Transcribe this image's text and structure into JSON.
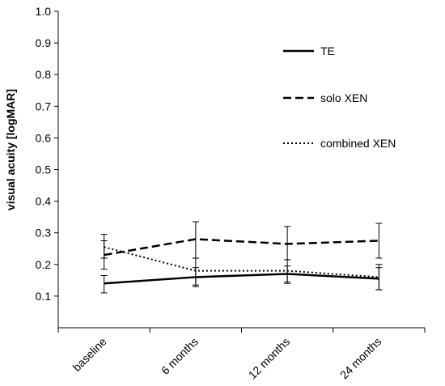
{
  "chart_data": {
    "type": "line",
    "ylabel": "visual acuity [logMAR]",
    "xlabel": "",
    "categories": [
      "baseline",
      "6 months",
      "12 months",
      "24 months"
    ],
    "ylim": [
      0.0,
      1.0
    ],
    "yticks": [
      "0.1",
      "0.2",
      "0.3",
      "0.4",
      "0.5",
      "0.6",
      "0.7",
      "0.8",
      "0.9",
      "1.0"
    ],
    "grid": false,
    "legend_position": "top-right",
    "series": [
      {
        "name": "TE",
        "style": "solid",
        "color": "#000000",
        "values": [
          0.14,
          0.16,
          0.17,
          0.155
        ],
        "err_low": [
          0.11,
          0.13,
          0.14,
          0.12
        ],
        "err_high": [
          0.165,
          0.19,
          0.195,
          0.19
        ]
      },
      {
        "name": "solo XEN",
        "style": "dashed",
        "color": "#000000",
        "values": [
          0.23,
          0.28,
          0.265,
          0.275
        ],
        "err_low": [
          0.185,
          0.22,
          0.215,
          0.22
        ],
        "err_high": [
          0.275,
          0.335,
          0.32,
          0.33
        ]
      },
      {
        "name": "combined XEN",
        "style": "dotted",
        "color": "#000000",
        "values": [
          0.255,
          0.18,
          0.18,
          0.16
        ],
        "err_low": [
          0.22,
          0.135,
          0.145,
          0.12
        ],
        "err_high": [
          0.295,
          0.22,
          0.215,
          0.2
        ]
      }
    ]
  }
}
